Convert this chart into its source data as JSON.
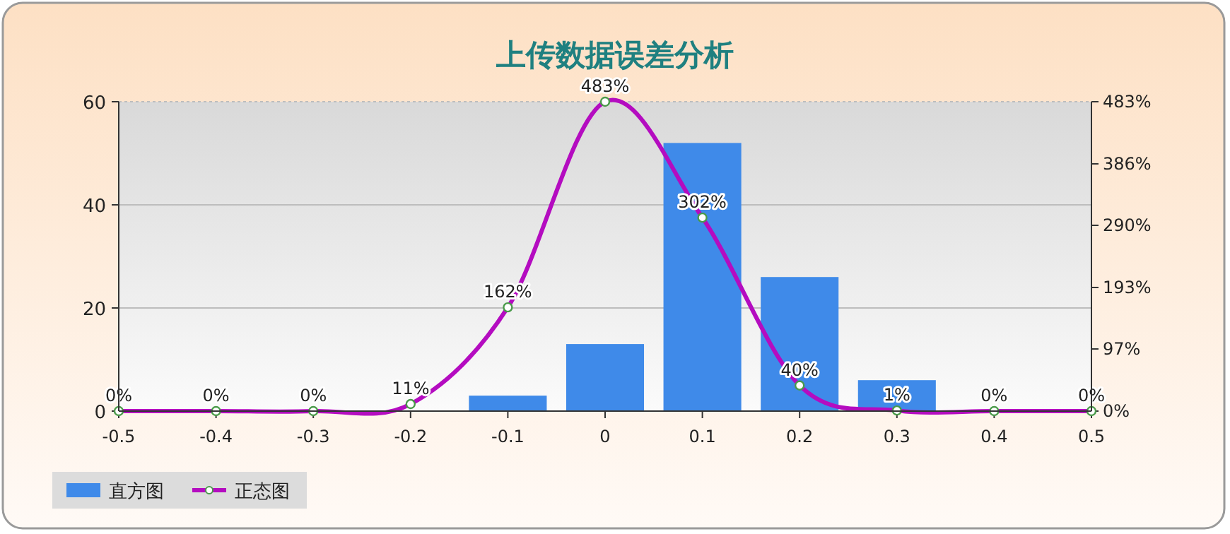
{
  "chart_data": {
    "type": "bar",
    "title": "上传数据误差分析",
    "x": [
      -0.5,
      -0.4,
      -0.3,
      -0.2,
      -0.1,
      0,
      0.1,
      0.2,
      0.3,
      0.4,
      0.5
    ],
    "xlim": [
      -0.5,
      0.5
    ],
    "xticks": [
      -0.5,
      -0.4,
      -0.3,
      -0.2,
      -0.1,
      0,
      0.1,
      0.2,
      0.3,
      0.4,
      0.5
    ],
    "ylim": [
      0,
      60
    ],
    "yticks": [
      0,
      20,
      40,
      60
    ],
    "y2lim": [
      0,
      483
    ],
    "y2ticks": [
      {
        "value": 0,
        "label": "0%"
      },
      {
        "value": 97,
        "label": "97%"
      },
      {
        "value": 193,
        "label": "193%"
      },
      {
        "value": 290,
        "label": "290%"
      },
      {
        "value": 386,
        "label": "386%"
      },
      {
        "value": 483,
        "label": "483%"
      }
    ],
    "grid": "y",
    "legend": "bottom left",
    "series": [
      {
        "name": "直方图",
        "color": "#3f8ae9",
        "values": [
          0,
          0,
          0,
          0,
          3,
          13,
          52,
          26,
          6,
          0,
          0
        ]
      },
      {
        "name": "正态图",
        "type": "line",
        "axis": "y2",
        "marker": "circle",
        "color": "#b40cc0",
        "values": [
          0,
          0,
          0,
          11,
          162,
          483,
          302,
          40,
          1,
          0,
          0
        ],
        "value_labels": [
          "0%",
          "0%",
          "0%",
          "11%",
          "162%",
          "483%",
          "302%",
          "40%",
          "1%",
          "0%",
          "0%"
        ]
      }
    ]
  }
}
